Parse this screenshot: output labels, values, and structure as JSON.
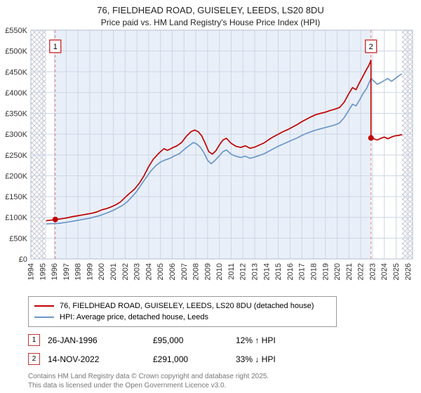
{
  "title": "76, FIELDHEAD ROAD, GUISELEY, LEEDS, LS20 8DU",
  "subtitle": "Price paid vs. HM Land Registry's House Price Index (HPI)",
  "chart_data": {
    "type": "line",
    "x_range": [
      1994,
      2026.4
    ],
    "y_range": [
      0,
      550000
    ],
    "y_tick_step": 50000,
    "y_ticks": [
      "£0",
      "£50K",
      "£100K",
      "£150K",
      "£200K",
      "£250K",
      "£300K",
      "£350K",
      "£400K",
      "£450K",
      "£500K",
      "£550K"
    ],
    "x_ticks": [
      1994,
      1995,
      1996,
      1997,
      1998,
      1999,
      2000,
      2001,
      2002,
      2003,
      2004,
      2005,
      2006,
      2007,
      2008,
      2009,
      2010,
      2011,
      2012,
      2013,
      2014,
      2015,
      2016,
      2017,
      2018,
      2019,
      2020,
      2021,
      2022,
      2023,
      2024,
      2025,
      2026
    ],
    "grid": true,
    "legend_position": "bottom",
    "colors": {
      "shade": "#e9eff8",
      "grid": "#ccd6e6",
      "border": "#b3bdd0",
      "dashed": "#e08080",
      "hatch": "#c9c9d4",
      "marker_box_border": "#cc2222",
      "accent_red": "#c00000",
      "hpi_blue": "#6b96c8"
    },
    "shaded_region": [
      1996.07,
      2022.87
    ],
    "hatch_regions": [
      [
        1994,
        1995.3
      ],
      [
        2025.5,
        2026.4
      ]
    ],
    "markers": [
      {
        "label": "1",
        "x": 1996.07,
        "value": 95000
      },
      {
        "label": "2",
        "x": 2022.87,
        "value": 291000
      }
    ],
    "series": [
      {
        "name": "HPI: Average price, detached house, Leeds",
        "color": "#6b96c8",
        "points": [
          [
            1995.3,
            84000
          ],
          [
            1995.7,
            85000
          ],
          [
            1996.07,
            84800
          ],
          [
            1996.5,
            86000
          ],
          [
            1997.0,
            88000
          ],
          [
            1997.4,
            90000
          ],
          [
            1997.8,
            92000
          ],
          [
            1998.2,
            94000
          ],
          [
            1998.6,
            96000
          ],
          [
            1999.0,
            98000
          ],
          [
            1999.4,
            101000
          ],
          [
            1999.8,
            104000
          ],
          [
            2000.2,
            108000
          ],
          [
            2000.6,
            112000
          ],
          [
            2001.0,
            117000
          ],
          [
            2001.4,
            123000
          ],
          [
            2001.8,
            129000
          ],
          [
            2002.2,
            138000
          ],
          [
            2002.6,
            150000
          ],
          [
            2003.0,
            163000
          ],
          [
            2003.4,
            180000
          ],
          [
            2003.8,
            196000
          ],
          [
            2004.2,
            212000
          ],
          [
            2004.6,
            224000
          ],
          [
            2005.0,
            233000
          ],
          [
            2005.4,
            238000
          ],
          [
            2005.8,
            242000
          ],
          [
            2006.2,
            248000
          ],
          [
            2006.6,
            253000
          ],
          [
            2007.0,
            263000
          ],
          [
            2007.4,
            272000
          ],
          [
            2007.8,
            280000
          ],
          [
            2008.1,
            276000
          ],
          [
            2008.4,
            268000
          ],
          [
            2008.7,
            255000
          ],
          [
            2009.0,
            237000
          ],
          [
            2009.3,
            229000
          ],
          [
            2009.6,
            236000
          ],
          [
            2010.0,
            248000
          ],
          [
            2010.3,
            258000
          ],
          [
            2010.6,
            262000
          ],
          [
            2011.0,
            252000
          ],
          [
            2011.4,
            247000
          ],
          [
            2011.8,
            244000
          ],
          [
            2012.2,
            247000
          ],
          [
            2012.6,
            242000
          ],
          [
            2013.0,
            245000
          ],
          [
            2013.4,
            249000
          ],
          [
            2013.8,
            253000
          ],
          [
            2014.2,
            259000
          ],
          [
            2014.6,
            265000
          ],
          [
            2015.0,
            271000
          ],
          [
            2015.4,
            276000
          ],
          [
            2015.8,
            281000
          ],
          [
            2016.2,
            286000
          ],
          [
            2016.6,
            291000
          ],
          [
            2017.0,
            297000
          ],
          [
            2017.4,
            302000
          ],
          [
            2017.8,
            306000
          ],
          [
            2018.2,
            310000
          ],
          [
            2018.6,
            313000
          ],
          [
            2019.0,
            316000
          ],
          [
            2019.4,
            319000
          ],
          [
            2019.8,
            322000
          ],
          [
            2020.2,
            327000
          ],
          [
            2020.6,
            340000
          ],
          [
            2021.0,
            358000
          ],
          [
            2021.3,
            372000
          ],
          [
            2021.6,
            368000
          ],
          [
            2021.9,
            382000
          ],
          [
            2022.2,
            398000
          ],
          [
            2022.5,
            410000
          ],
          [
            2022.87,
            434000
          ],
          [
            2023.1,
            428000
          ],
          [
            2023.4,
            420000
          ],
          [
            2023.7,
            424000
          ],
          [
            2024.0,
            429000
          ],
          [
            2024.3,
            434000
          ],
          [
            2024.6,
            427000
          ],
          [
            2024.9,
            433000
          ],
          [
            2025.2,
            440000
          ],
          [
            2025.5,
            445000
          ]
        ]
      },
      {
        "name": "76, FIELDHEAD ROAD, GUISELEY, LEEDS, LS20 8DU (detached house)",
        "color": "#c00000",
        "points": [
          [
            1995.3,
            92000
          ],
          [
            1995.6,
            93000
          ],
          [
            1995.9,
            94000
          ],
          [
            1996.07,
            95000
          ],
          [
            1996.4,
            96000
          ],
          [
            1996.8,
            97500
          ],
          [
            1997.2,
            99500
          ],
          [
            1997.6,
            102000
          ],
          [
            1998.0,
            104000
          ],
          [
            1998.4,
            106000
          ],
          [
            1998.8,
            108000
          ],
          [
            1999.2,
            110000
          ],
          [
            1999.6,
            113000
          ],
          [
            2000.0,
            118000
          ],
          [
            2000.4,
            121000
          ],
          [
            2000.8,
            125000
          ],
          [
            2001.2,
            130000
          ],
          [
            2001.6,
            137000
          ],
          [
            2002.0,
            148000
          ],
          [
            2002.4,
            158000
          ],
          [
            2002.8,
            168000
          ],
          [
            2003.2,
            182000
          ],
          [
            2003.6,
            200000
          ],
          [
            2004.0,
            222000
          ],
          [
            2004.4,
            240000
          ],
          [
            2004.8,
            252000
          ],
          [
            2005.0,
            258000
          ],
          [
            2005.3,
            265000
          ],
          [
            2005.6,
            261000
          ],
          [
            2006.0,
            267000
          ],
          [
            2006.4,
            272000
          ],
          [
            2006.8,
            280000
          ],
          [
            2007.2,
            295000
          ],
          [
            2007.6,
            306000
          ],
          [
            2007.9,
            310000
          ],
          [
            2008.2,
            306000
          ],
          [
            2008.5,
            296000
          ],
          [
            2008.8,
            278000
          ],
          [
            2009.1,
            258000
          ],
          [
            2009.4,
            252000
          ],
          [
            2009.7,
            260000
          ],
          [
            2010.0,
            274000
          ],
          [
            2010.3,
            286000
          ],
          [
            2010.6,
            290000
          ],
          [
            2011.0,
            278000
          ],
          [
            2011.4,
            271000
          ],
          [
            2011.8,
            268000
          ],
          [
            2012.2,
            272000
          ],
          [
            2012.6,
            266000
          ],
          [
            2013.0,
            269000
          ],
          [
            2013.4,
            274000
          ],
          [
            2013.8,
            279000
          ],
          [
            2014.2,
            287000
          ],
          [
            2014.6,
            294000
          ],
          [
            2015.0,
            300000
          ],
          [
            2015.4,
            306000
          ],
          [
            2015.8,
            311000
          ],
          [
            2016.2,
            317000
          ],
          [
            2016.6,
            323000
          ],
          [
            2017.0,
            330000
          ],
          [
            2017.4,
            336000
          ],
          [
            2017.8,
            342000
          ],
          [
            2018.2,
            347000
          ],
          [
            2018.6,
            350000
          ],
          [
            2019.0,
            353000
          ],
          [
            2019.4,
            357000
          ],
          [
            2019.8,
            360000
          ],
          [
            2020.2,
            364000
          ],
          [
            2020.6,
            377000
          ],
          [
            2021.0,
            398000
          ],
          [
            2021.3,
            412000
          ],
          [
            2021.6,
            407000
          ],
          [
            2021.9,
            424000
          ],
          [
            2022.2,
            440000
          ],
          [
            2022.5,
            456000
          ],
          [
            2022.7,
            466000
          ],
          [
            2022.87,
            478000
          ],
          [
            2022.87,
            291000
          ],
          [
            2023.1,
            289000
          ],
          [
            2023.4,
            286000
          ],
          [
            2023.7,
            290000
          ],
          [
            2024.0,
            293000
          ],
          [
            2024.3,
            289000
          ],
          [
            2024.6,
            293000
          ],
          [
            2024.9,
            296000
          ],
          [
            2025.2,
            297000
          ],
          [
            2025.5,
            299000
          ]
        ]
      }
    ]
  },
  "legend": {
    "items": [
      {
        "label": "76, FIELDHEAD ROAD, GUISELEY, LEEDS, LS20 8DU (detached house)",
        "color": "#c00000"
      },
      {
        "label": "HPI: Average price, detached house, Leeds",
        "color": "#6b96c8"
      }
    ]
  },
  "transactions": [
    {
      "num": "1",
      "date": "26-JAN-1996",
      "price": "£95,000",
      "hpi": "12% ↑ HPI"
    },
    {
      "num": "2",
      "date": "14-NOV-2022",
      "price": "£291,000",
      "hpi": "33% ↓ HPI"
    }
  ],
  "footer": {
    "line1": "Contains HM Land Registry data © Crown copyright and database right 2025.",
    "line2": "This data is licensed under the Open Government Licence v3.0."
  }
}
